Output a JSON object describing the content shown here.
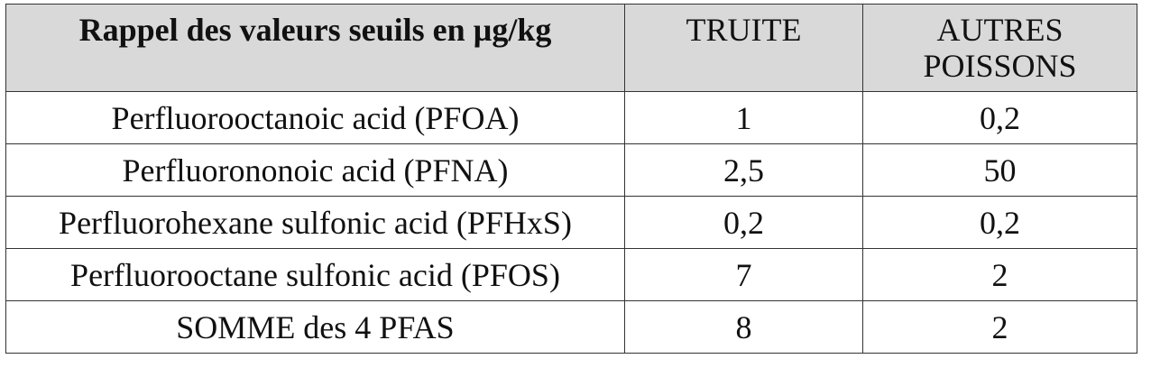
{
  "table": {
    "headers": {
      "substance": "Rappel des valeurs seuils en µg/kg",
      "truite": "TRUITE",
      "autres_line1": "AUTRES",
      "autres_line2": "POISSONS"
    },
    "rows": [
      {
        "substance": "Perfluorooctanoic acid (PFOA)",
        "truite": "1",
        "autres": "0,2"
      },
      {
        "substance": "Perfluorononoic acid (PFNA)",
        "truite": "2,5",
        "autres": "50"
      },
      {
        "substance": "Perfluorohexane sulfonic acid (PFHxS)",
        "truite": "0,2",
        "autres": "0,2"
      },
      {
        "substance": "Perfluorooctane sulfonic acid (PFOS)",
        "truite": "7",
        "autres": "2"
      },
      {
        "substance": "SOMME des 4 PFAS",
        "truite": "8",
        "autres": "2"
      }
    ]
  },
  "colors": {
    "header_background": "#d9d9d9",
    "border": "#333333",
    "text": "#111111"
  }
}
